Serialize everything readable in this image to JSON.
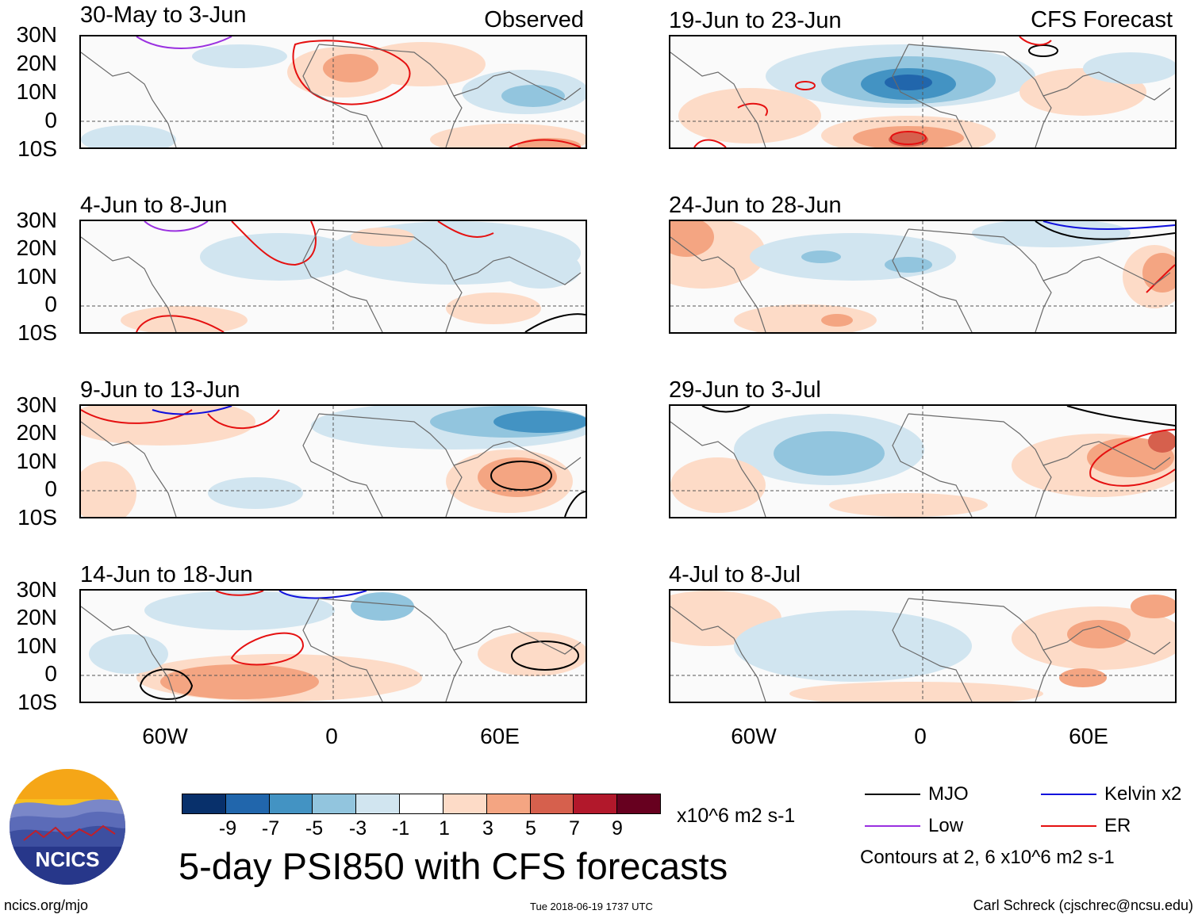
{
  "header": {
    "observed_label": "Observed",
    "forecast_label": "CFS Forecast"
  },
  "panels_left": [
    {
      "period": "30-May to 3-Jun"
    },
    {
      "period": "4-Jun to 8-Jun"
    },
    {
      "period": "9-Jun to 13-Jun"
    },
    {
      "period": "14-Jun to 18-Jun"
    }
  ],
  "panels_right": [
    {
      "period": "19-Jun to 23-Jun"
    },
    {
      "period": "24-Jun to 28-Jun"
    },
    {
      "period": "29-Jun to 3-Jul"
    },
    {
      "period": "4-Jul to 8-Jul"
    }
  ],
  "axes": {
    "lat_labels": [
      "30N",
      "20N",
      "10N",
      "0",
      "10S"
    ],
    "lon_labels": [
      "60W",
      "0",
      "60E"
    ]
  },
  "colorbar": {
    "labels": [
      "-9",
      "-7",
      "-5",
      "-3",
      "-1",
      "1",
      "3",
      "5",
      "7",
      "9"
    ],
    "colors": [
      "#08306b",
      "#2166ac",
      "#4393c3",
      "#92c5de",
      "#d1e5f0",
      "#ffffff",
      "#fddbc7",
      "#f4a582",
      "#d6604d",
      "#b2182b",
      "#67001f"
    ],
    "units": "x10^6 m2 s-1"
  },
  "legend": {
    "items": [
      {
        "label": "MJO",
        "color": "#000000"
      },
      {
        "label": "Kelvin x2",
        "color": "#1010dd"
      },
      {
        "label": "Low",
        "color": "#9a30e0"
      },
      {
        "label": "ER",
        "color": "#e51010"
      }
    ],
    "contours_note": "Contours at 2, 6 x10^6 m2 s-1"
  },
  "title": "5-day PSI850 with CFS forecasts",
  "logo": {
    "text": "NCICS"
  },
  "footer": {
    "url": "ncics.org/mjo",
    "timestamp": "Tue 2018-06-19 1737 UTC",
    "author": "Carl Schreck (cjschrec@ncsu.edu)"
  }
}
